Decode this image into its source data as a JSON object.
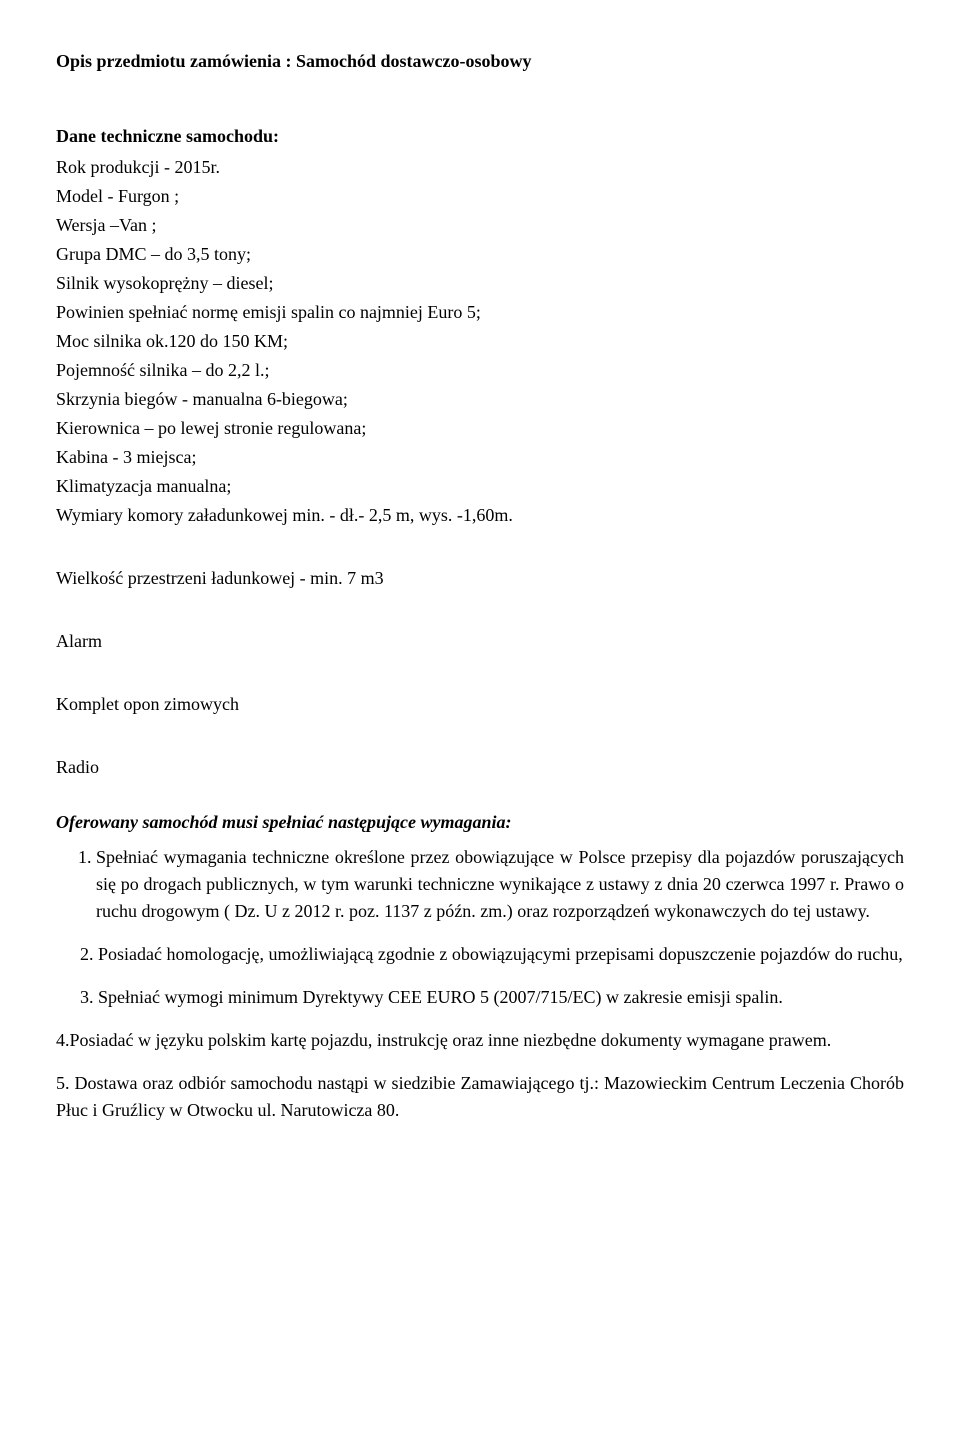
{
  "title": "Opis przedmiotu zamówienia : Samochód dostawczo-osobowy",
  "heading_tech": "Dane techniczne samochodu:",
  "specs": {
    "rok": "Rok produkcji -  2015r.",
    "model": "Model - Furgon ;",
    "wersja": "Wersja –Van ;",
    "grupa": "Grupa DMC – do 3,5 tony;",
    "silnik": "Silnik wysokoprężny – diesel;",
    "emisja": "Powinien spełniać normę emisji spalin co najmniej Euro 5;",
    "moc": "Moc silnika ok.120 do  150 KM;",
    "pojemnosc": "Pojemność silnika – do 2,2 l.;",
    "skrzynia": "Skrzynia biegów - manualna   6-biegowa;",
    "kierownica": "Kierownica – po lewej stronie regulowana;",
    "kabina": "Kabina - 3 miejsca;",
    "klimatyzacja": "Klimatyzacja manualna;",
    "wymiary": "Wymiary komory załadunkowej   min.  -  dł.- 2,5 m, wys. -1,60m.",
    "wielkosc": "Wielkość przestrzeni ładunkowej - min. 7 m3",
    "alarm": "Alarm",
    "opony": "Komplet opon zimowych",
    "radio": "Radio"
  },
  "req_heading": "Oferowany samochód musi spełniać następujące wymagania:",
  "req1": "Spełniać wymagania techniczne określone przez obowiązujące w Polsce przepisy dla pojazdów poruszających się po drogach publicznych, w tym warunki techniczne wynikające z ustawy z dnia 20 czerwca 1997 r. Prawo o ruchu drogowym ( Dz. U z 2012 r. poz. 1137 z późn. zm.) oraz rozporządzeń wykonawczych do tej ustawy.",
  "req2": "2. Posiadać homologację, umożliwiającą zgodnie z obowiązującymi przepisami dopuszczenie pojazdów do ruchu,",
  "req3": "3. Spełniać wymogi minimum Dyrektywy CEE EURO 5 (2007/715/EC) w zakresie emisji spalin.",
  "req4": "4.Posiadać w języku polskim kartę pojazdu, instrukcję oraz inne niezbędne dokumenty wymagane prawem.",
  "req5": "5. Dostawa oraz odbiór samochodu nastąpi w siedzibie Zamawiającego tj.: Mazowieckim Centrum Leczenia Chorób Płuc i Gruźlicy w Otwocku ul. Narutowicza 80."
}
